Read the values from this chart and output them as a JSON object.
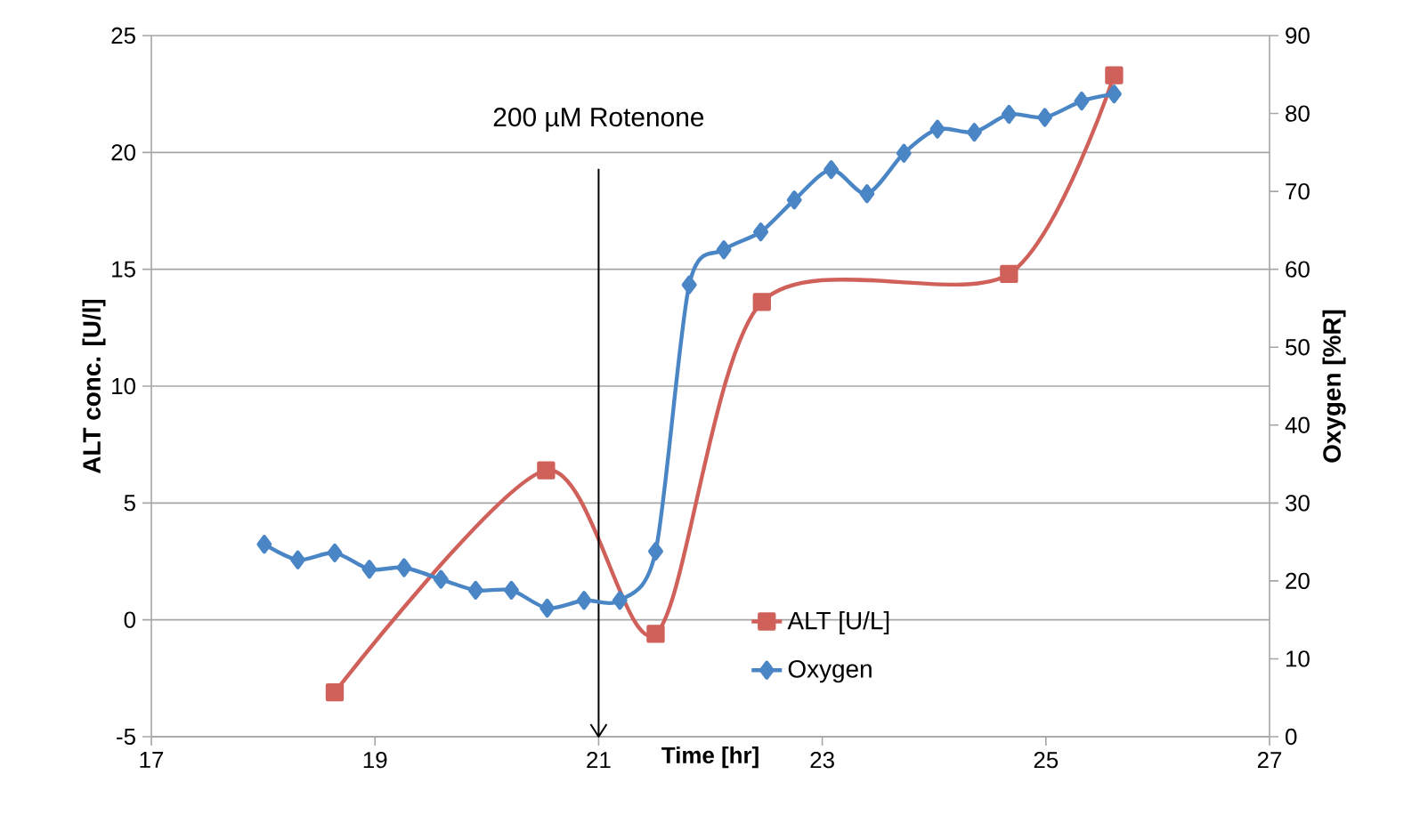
{
  "chart_data": {
    "type": "line",
    "xlabel": "Time [hr]",
    "ylabel": "ALT conc. [U/l]",
    "y2label": "Oxygen [%R]",
    "xlim": [
      17,
      27
    ],
    "xticks": [
      17,
      19,
      21,
      23,
      25,
      27
    ],
    "ylim": [
      -5,
      25
    ],
    "yticks": [
      -5,
      0,
      5,
      10,
      15,
      20,
      25
    ],
    "y2lim": [
      0,
      90
    ],
    "y2ticks": [
      0,
      10,
      20,
      30,
      40,
      50,
      60,
      70,
      80,
      90
    ],
    "grid": "y",
    "legend": "bottom",
    "line_style": "solid",
    "ref_lines": [
      {
        "axis": "x",
        "value": 21,
        "label": "200 µM Rotenone"
      }
    ],
    "series": [
      {
        "name": "ALT [U/L]",
        "color": "#d0605a",
        "marker": "square",
        "x": [
          18.64,
          20.53,
          21.51,
          22.46,
          24.67,
          25.61
        ],
        "values": [
          -3.1,
          6.4,
          -0.6,
          13.6,
          14.8,
          23.3
        ]
      },
      {
        "name": "Oxygen",
        "color": "#4a86c5",
        "marker": "diamond",
        "axis": "y2",
        "x": [
          18.01,
          18.31,
          18.64,
          18.95,
          19.26,
          19.59,
          19.9,
          20.22,
          20.54,
          20.87,
          21.19,
          21.51,
          21.81,
          22.12,
          22.45,
          22.75,
          23.08,
          23.4,
          23.73,
          24.03,
          24.36,
          24.67,
          24.99,
          25.32,
          25.61
        ],
        "values": [
          24.7,
          22.7,
          23.6,
          21.5,
          21.7,
          20.2,
          18.8,
          18.8,
          16.5,
          17.5,
          17.5,
          23.8,
          58.0,
          62.5,
          64.8,
          68.9,
          72.8,
          69.7,
          74.9,
          78.0,
          77.6,
          79.9,
          79.5,
          81.6,
          82.5
        ]
      }
    ]
  }
}
